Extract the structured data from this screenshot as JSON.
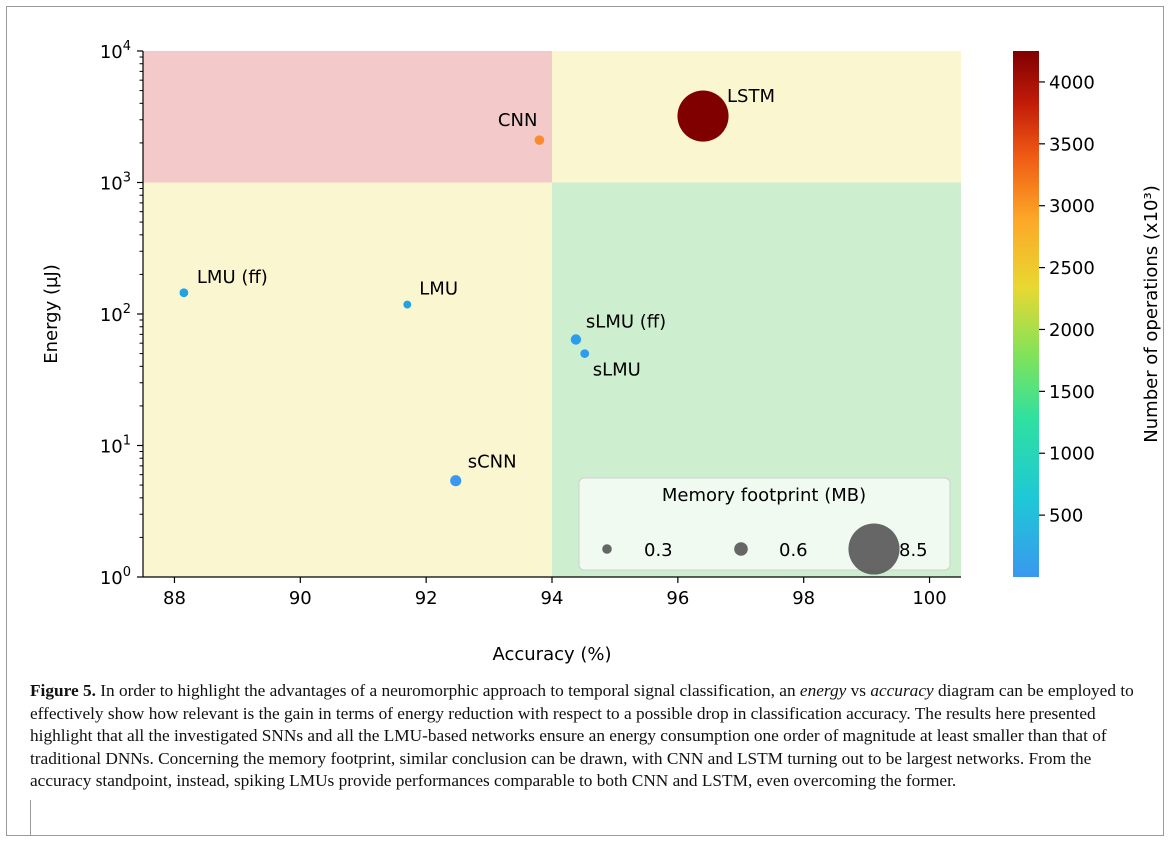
{
  "chart_data": {
    "type": "scatter",
    "title": "",
    "xlabel": "Accuracy (%)",
    "ylabel": "Energy (µJ)",
    "xlim": [
      87.5,
      100.5
    ],
    "ylim": [
      1,
      10000
    ],
    "yscale": "log",
    "xticks": [
      "88",
      "90",
      "92",
      "94",
      "96",
      "98",
      "100"
    ],
    "regions": [
      {
        "x": [
          87.5,
          94
        ],
        "y": [
          1000,
          10000
        ],
        "color": "#f4c9c9"
      },
      {
        "x": [
          94,
          100.5
        ],
        "y": [
          1000,
          10000
        ],
        "color": "#faf6cf"
      },
      {
        "x": [
          87.5,
          94
        ],
        "y": [
          1,
          1000
        ],
        "color": "#faf6cf"
      },
      {
        "x": [
          94,
          100.5
        ],
        "y": [
          1,
          1000
        ],
        "color": "#cdefcf"
      }
    ],
    "points": [
      {
        "label": "LSTM",
        "x": 96.4,
        "y": 3200,
        "operations_k": 4250,
        "memory_mb": 8.5,
        "color": "#800000"
      },
      {
        "label": "CNN",
        "x": 93.8,
        "y": 2100,
        "operations_k": 2950,
        "memory_mb": 0.3,
        "color": "#fd8a2b"
      },
      {
        "label": "LMU (ff)",
        "x": 88.15,
        "y": 145,
        "operations_k": 500,
        "memory_mb": 0.25,
        "color": "#1fa3e4"
      },
      {
        "label": "LMU",
        "x": 91.7,
        "y": 118,
        "operations_k": 480,
        "memory_mb": 0.2,
        "color": "#1fa3e4"
      },
      {
        "label": "sLMU (ff)",
        "x": 94.38,
        "y": 64,
        "operations_k": 380,
        "memory_mb": 0.35,
        "color": "#2b9ded"
      },
      {
        "label": "sLMU",
        "x": 94.52,
        "y": 50,
        "operations_k": 360,
        "memory_mb": 0.25,
        "color": "#2b9ded"
      },
      {
        "label": "sCNN",
        "x": 92.47,
        "y": 5.4,
        "operations_k": 250,
        "memory_mb": 0.4,
        "color": "#3a98ef"
      }
    ],
    "colorbar": {
      "label": "Number of operations (x10³)",
      "range": [
        0,
        4250
      ],
      "ticks": [
        "500",
        "1000",
        "1500",
        "2000",
        "2500",
        "3000",
        "3500",
        "4000"
      ]
    },
    "legend": {
      "title": "Memory footprint (MB)",
      "placement": "lower right",
      "items": [
        "0.3",
        "0.6",
        "8.5"
      ]
    }
  },
  "caption": {
    "label": "Figure 5.",
    "t1": " In order to highlight the advantages of a neuromorphic approach to temporal signal classification, an ",
    "em1": "energy",
    "t2": " vs ",
    "em2": "accuracy",
    "t3": " diagram can be employed to effectively show how relevant is the gain in terms of energy reduction with respect to a possible drop in classification accuracy. The results here presented highlight that all the investigated SNNs and all the LMU-based networks ensure an energy consumption one order of magnitude at least smaller than that of traditional DNNs. Concerning the memory footprint, similar conclusion can be drawn, with CNN and LSTM turning out to be largest networks. From the accuracy standpoint, instead, spiking LMUs provide performances comparable to both CNN and LSTM, even overcoming the former."
  }
}
